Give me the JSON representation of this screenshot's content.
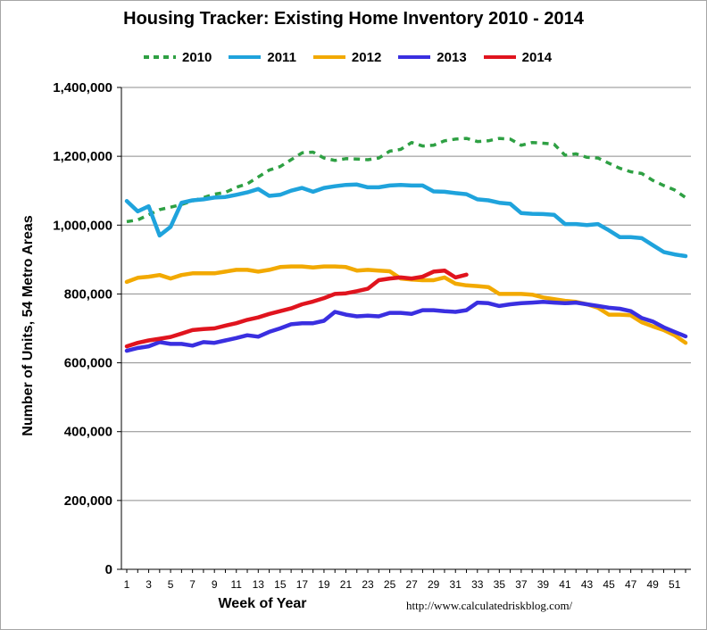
{
  "chart_data": {
    "type": "line",
    "title": "Housing Tracker: Existing Home Inventory 2010 - 2014",
    "xlabel": "Week of Year",
    "ylabel": "Number of Units, 54 Metro Areas",
    "source": "http://www.calculatedriskblog.com/",
    "xlim": [
      1,
      52
    ],
    "ylim": [
      0,
      1400000
    ],
    "y_ticks": [
      "0",
      "200,000",
      "400,000",
      "600,000",
      "800,000",
      "1,000,000",
      "1,200,000",
      "1,400,000"
    ],
    "x_ticks": [
      "1",
      "3",
      "5",
      "7",
      "9",
      "11",
      "13",
      "15",
      "17",
      "19",
      "21",
      "23",
      "25",
      "27",
      "29",
      "31",
      "33",
      "35",
      "37",
      "39",
      "41",
      "43",
      "45",
      "47",
      "49",
      "51"
    ],
    "grid": "horizontal",
    "legend": "top",
    "series": [
      {
        "name": "2010",
        "color": "#2ea043",
        "dash": true,
        "x": [
          1,
          2,
          3,
          4,
          5,
          6,
          7,
          8,
          9,
          10,
          11,
          12,
          13,
          14,
          15,
          16,
          17,
          18,
          19,
          20,
          21,
          22,
          23,
          24,
          25,
          26,
          27,
          28,
          29,
          30,
          31,
          32,
          33,
          34,
          35,
          36,
          37,
          38,
          39,
          40,
          41,
          42,
          43,
          44,
          45,
          46,
          47,
          48,
          49,
          50,
          51,
          52
        ],
        "values": [
          1010000,
          1015000,
          1030000,
          1045000,
          1052000,
          1060000,
          1070000,
          1080000,
          1090000,
          1095000,
          1110000,
          1120000,
          1140000,
          1160000,
          1170000,
          1190000,
          1210000,
          1212000,
          1195000,
          1188000,
          1193000,
          1192000,
          1190000,
          1195000,
          1215000,
          1220000,
          1240000,
          1230000,
          1232000,
          1245000,
          1250000,
          1252000,
          1243000,
          1245000,
          1252000,
          1250000,
          1232000,
          1240000,
          1238000,
          1235000,
          1203000,
          1207000,
          1197000,
          1195000,
          1180000,
          1165000,
          1155000,
          1150000,
          1130000,
          1115000,
          1102000,
          1080000
        ]
      },
      {
        "name": "2011",
        "color": "#1fa3dc",
        "dash": false,
        "x": [
          1,
          2,
          3,
          4,
          5,
          6,
          7,
          8,
          9,
          10,
          11,
          12,
          13,
          14,
          15,
          16,
          17,
          18,
          19,
          20,
          21,
          22,
          23,
          24,
          25,
          26,
          27,
          28,
          29,
          30,
          31,
          32,
          33,
          34,
          35,
          36,
          37,
          38,
          39,
          40,
          41,
          42,
          43,
          44,
          45,
          46,
          47,
          48,
          49,
          50,
          51,
          52
        ],
        "values": [
          1070000,
          1040000,
          1055000,
          970000,
          995000,
          1065000,
          1072000,
          1075000,
          1080000,
          1082000,
          1088000,
          1095000,
          1105000,
          1085000,
          1088000,
          1100000,
          1108000,
          1097000,
          1108000,
          1113000,
          1117000,
          1118000,
          1110000,
          1110000,
          1115000,
          1117000,
          1115000,
          1115000,
          1098000,
          1097000,
          1093000,
          1090000,
          1075000,
          1072000,
          1065000,
          1062000,
          1035000,
          1033000,
          1032000,
          1030000,
          1003000,
          1003000,
          1000000,
          1003000,
          985000,
          965000,
          965000,
          962000,
          942000,
          922000,
          915000,
          910000
        ]
      },
      {
        "name": "2012",
        "color": "#f2a900",
        "dash": false,
        "x": [
          1,
          2,
          3,
          4,
          5,
          6,
          7,
          8,
          9,
          10,
          11,
          12,
          13,
          14,
          15,
          16,
          17,
          18,
          19,
          20,
          21,
          22,
          23,
          24,
          25,
          26,
          27,
          28,
          29,
          30,
          31,
          32,
          33,
          34,
          35,
          36,
          37,
          38,
          39,
          40,
          41,
          42,
          43,
          44,
          45,
          46,
          47,
          48,
          49,
          50,
          51,
          52
        ],
        "values": [
          835000,
          847000,
          850000,
          855000,
          845000,
          855000,
          860000,
          860000,
          860000,
          865000,
          870000,
          870000,
          865000,
          870000,
          878000,
          880000,
          880000,
          877000,
          880000,
          880000,
          878000,
          868000,
          870000,
          868000,
          866000,
          845000,
          842000,
          840000,
          840000,
          848000,
          830000,
          825000,
          823000,
          820000,
          800000,
          800000,
          800000,
          798000,
          790000,
          785000,
          780000,
          777000,
          770000,
          760000,
          740000,
          740000,
          738000,
          718000,
          706000,
          695000,
          680000,
          658000
        ]
      },
      {
        "name": "2013",
        "color": "#3a2fe0",
        "dash": false,
        "x": [
          1,
          2,
          3,
          4,
          5,
          6,
          7,
          8,
          9,
          10,
          11,
          12,
          13,
          14,
          15,
          16,
          17,
          18,
          19,
          20,
          21,
          22,
          23,
          24,
          25,
          26,
          27,
          28,
          29,
          30,
          31,
          32,
          33,
          34,
          35,
          36,
          37,
          38,
          39,
          40,
          41,
          42,
          43,
          44,
          45,
          46,
          47,
          48,
          49,
          50,
          51,
          52
        ],
        "values": [
          635000,
          643000,
          648000,
          660000,
          655000,
          655000,
          650000,
          660000,
          658000,
          665000,
          672000,
          680000,
          676000,
          690000,
          700000,
          712000,
          715000,
          715000,
          722000,
          748000,
          740000,
          735000,
          737000,
          735000,
          745000,
          745000,
          742000,
          753000,
          753000,
          750000,
          748000,
          753000,
          775000,
          773000,
          765000,
          770000,
          773000,
          775000,
          777000,
          775000,
          773000,
          775000,
          770000,
          765000,
          760000,
          757000,
          750000,
          730000,
          720000,
          703000,
          690000,
          677000
        ]
      },
      {
        "name": "2014",
        "color": "#e0141e",
        "dash": false,
        "x": [
          1,
          2,
          3,
          4,
          5,
          6,
          7,
          8,
          9,
          10,
          11,
          12,
          13,
          14,
          15,
          16,
          17,
          18,
          19,
          20,
          21,
          22,
          23,
          24,
          25,
          26,
          27,
          28,
          29,
          30,
          31,
          32
        ],
        "values": [
          648000,
          658000,
          665000,
          670000,
          675000,
          685000,
          695000,
          698000,
          700000,
          708000,
          715000,
          725000,
          732000,
          742000,
          750000,
          758000,
          770000,
          778000,
          788000,
          800000,
          802000,
          808000,
          815000,
          840000,
          845000,
          848000,
          845000,
          850000,
          865000,
          868000,
          848000,
          856000
        ]
      }
    ]
  }
}
